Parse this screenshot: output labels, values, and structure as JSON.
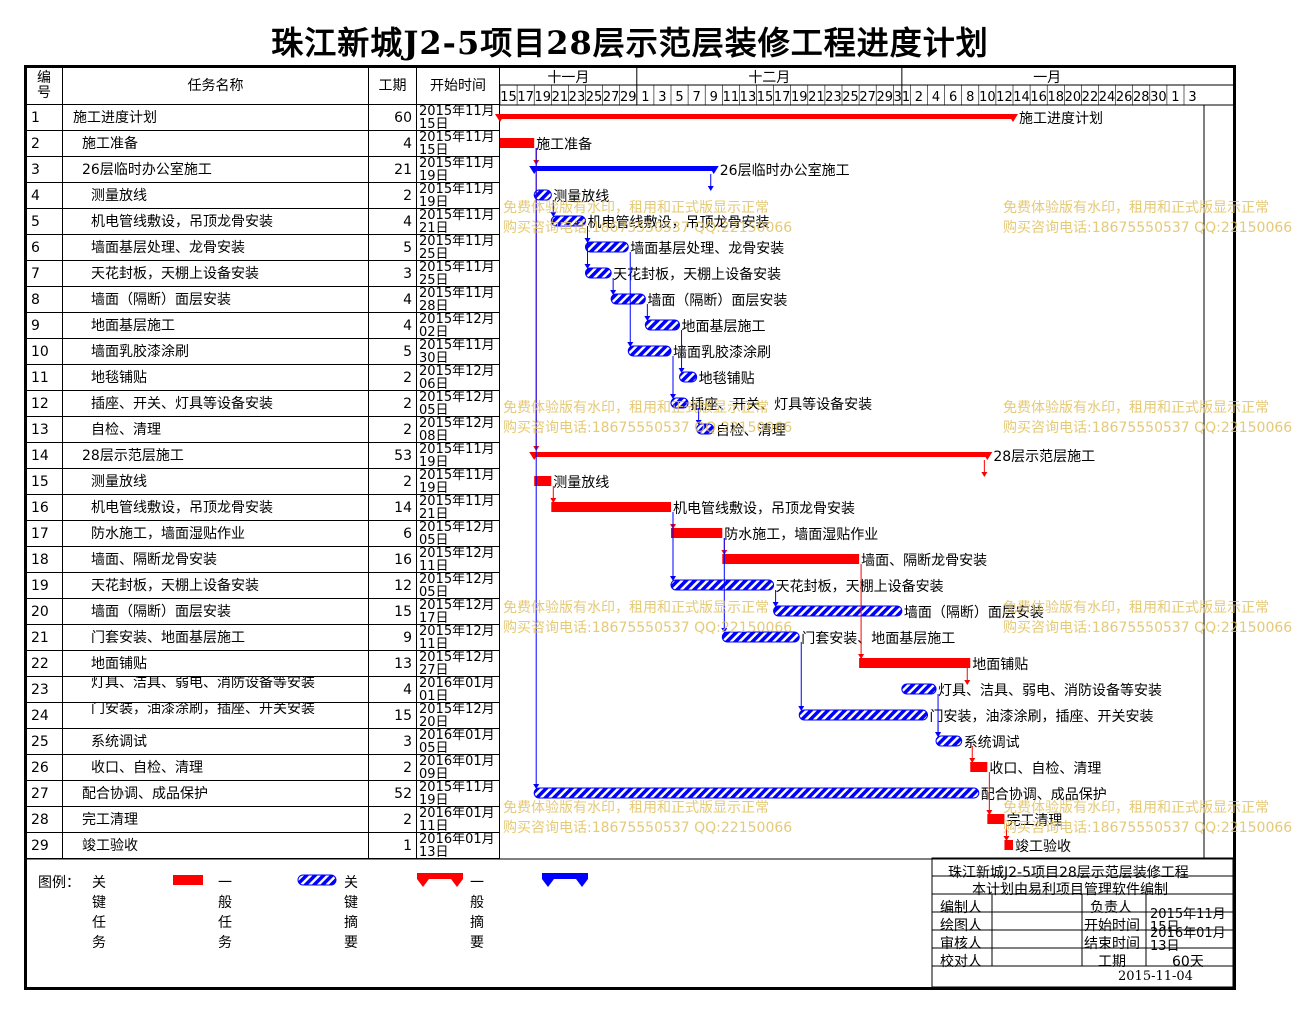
{
  "title": "珠江新城J2-5项目28层示范层装修工程进度计划",
  "headers": {
    "id": "编号",
    "name": "任务名称",
    "duration": "工期",
    "start": "开始时间"
  },
  "months": [
    "十一月",
    "十二月",
    "一月"
  ],
  "day_ticks": [
    "15",
    "17",
    "19",
    "21",
    "23",
    "25",
    "27",
    "29",
    "1",
    "3",
    "5",
    "7",
    "9",
    "11",
    "13",
    "15",
    "17",
    "19",
    "21",
    "23",
    "25",
    "27",
    "29",
    "31",
    "2",
    "4",
    "6",
    "8",
    "10",
    "12",
    "14",
    "16",
    "18",
    "20",
    "22",
    "24",
    "26",
    "28",
    "30",
    "1",
    "3"
  ],
  "chart_data": {
    "type": "gantt",
    "x_axis": {
      "start": "2015-11-15",
      "end": "2016-02-03"
    },
    "tasks": [
      {
        "id": "1",
        "name": "施工进度计划",
        "duration": "60",
        "start": "2015年11月15日",
        "start_iso": "2015-11-15",
        "days": 60,
        "kind": "key-summary",
        "indent": 0
      },
      {
        "id": "2",
        "name": "施工准备",
        "duration": "4",
        "start": "2015年11月15日",
        "start_iso": "2015-11-15",
        "days": 4,
        "kind": "key",
        "indent": 1
      },
      {
        "id": "3",
        "name": "26层临时办公室施工",
        "duration": "21",
        "start": "2015年11月19日",
        "start_iso": "2015-11-19",
        "days": 21,
        "kind": "summary",
        "indent": 1
      },
      {
        "id": "4",
        "name": "测量放线",
        "duration": "2",
        "start": "2015年11月19日",
        "start_iso": "2015-11-19",
        "days": 2,
        "kind": "normal",
        "indent": 2
      },
      {
        "id": "5",
        "name": "机电管线敷设，吊顶龙骨安装",
        "duration": "4",
        "start": "2015年11月21日",
        "start_iso": "2015-11-21",
        "days": 4,
        "kind": "normal",
        "indent": 2
      },
      {
        "id": "6",
        "name": "墙面基层处理、龙骨安装",
        "duration": "5",
        "start": "2015年11月25日",
        "start_iso": "2015-11-25",
        "days": 5,
        "kind": "normal",
        "indent": 2
      },
      {
        "id": "7",
        "name": "天花封板，天棚上设备安装",
        "duration": "3",
        "start": "2015年11月25日",
        "start_iso": "2015-11-25",
        "days": 3,
        "kind": "normal",
        "indent": 2
      },
      {
        "id": "8",
        "name": "墙面（隔断）面层安装",
        "duration": "4",
        "start": "2015年11月28日",
        "start_iso": "2015-11-28",
        "days": 4,
        "kind": "normal",
        "indent": 2
      },
      {
        "id": "9",
        "name": "地面基层施工",
        "duration": "4",
        "start": "2015年12月02日",
        "start_iso": "2015-12-02",
        "days": 4,
        "kind": "normal",
        "indent": 2
      },
      {
        "id": "10",
        "name": "墙面乳胶漆涂刷",
        "duration": "5",
        "start": "2015年11月30日",
        "start_iso": "2015-11-30",
        "days": 5,
        "kind": "normal",
        "indent": 2
      },
      {
        "id": "11",
        "name": "地毯铺贴",
        "duration": "2",
        "start": "2015年12月06日",
        "start_iso": "2015-12-06",
        "days": 2,
        "kind": "normal",
        "indent": 2
      },
      {
        "id": "12",
        "name": "插座、开关、灯具等设备安装",
        "duration": "2",
        "start": "2015年12月05日",
        "start_iso": "2015-12-05",
        "days": 2,
        "kind": "normal",
        "indent": 2
      },
      {
        "id": "13",
        "name": "自检、清理",
        "duration": "2",
        "start": "2015年12月08日",
        "start_iso": "2015-12-08",
        "days": 2,
        "kind": "normal",
        "indent": 2
      },
      {
        "id": "14",
        "name": "28层示范层施工",
        "duration": "53",
        "start": "2015年11月19日",
        "start_iso": "2015-11-19",
        "days": 53,
        "kind": "key-summary",
        "indent": 1
      },
      {
        "id": "15",
        "name": "测量放线",
        "duration": "2",
        "start": "2015年11月19日",
        "start_iso": "2015-11-19",
        "days": 2,
        "kind": "key",
        "indent": 2
      },
      {
        "id": "16",
        "name": "机电管线敷设，吊顶龙骨安装",
        "duration": "14",
        "start": "2015年11月21日",
        "start_iso": "2015-11-21",
        "days": 14,
        "kind": "key",
        "indent": 2
      },
      {
        "id": "17",
        "name": "防水施工，墙面湿贴作业",
        "duration": "6",
        "start": "2015年12月05日",
        "start_iso": "2015-12-05",
        "days": 6,
        "kind": "key",
        "indent": 2
      },
      {
        "id": "18",
        "name": "墙面、隔断龙骨安装",
        "duration": "16",
        "start": "2015年12月11日",
        "start_iso": "2015-12-11",
        "days": 16,
        "kind": "key",
        "indent": 2
      },
      {
        "id": "19",
        "name": "天花封板，天棚上设备安装",
        "duration": "12",
        "start": "2015年12月05日",
        "start_iso": "2015-12-05",
        "days": 12,
        "kind": "normal",
        "indent": 2
      },
      {
        "id": "20",
        "name": "墙面（隔断）面层安装",
        "duration": "15",
        "start": "2015年12月17日",
        "start_iso": "2015-12-17",
        "days": 15,
        "kind": "normal",
        "indent": 2
      },
      {
        "id": "21",
        "name": "门套安装、地面基层施工",
        "duration": "9",
        "start": "2015年12月11日",
        "start_iso": "2015-12-11",
        "days": 9,
        "kind": "normal",
        "indent": 2
      },
      {
        "id": "22",
        "name": "地面铺贴",
        "duration": "13",
        "start": "2015年12月27日",
        "start_iso": "2015-12-27",
        "days": 13,
        "kind": "key",
        "indent": 2
      },
      {
        "id": "23",
        "name": "灯具、洁具、弱电、消防设备等安装",
        "duration": "4",
        "start": "2016年01月01日",
        "start_iso": "2016-01-01",
        "days": 4,
        "kind": "normal",
        "indent": 2
      },
      {
        "id": "24",
        "name": "门安装，油漆涂刷，插座、开关安装",
        "duration": "15",
        "start": "2015年12月20日",
        "start_iso": "2015-12-20",
        "days": 15,
        "kind": "normal",
        "indent": 2
      },
      {
        "id": "25",
        "name": "系统调试",
        "duration": "3",
        "start": "2016年01月05日",
        "start_iso": "2016-01-05",
        "days": 3,
        "kind": "normal",
        "indent": 2
      },
      {
        "id": "26",
        "name": "收口、自检、清理",
        "duration": "2",
        "start": "2016年01月09日",
        "start_iso": "2016-01-09",
        "days": 2,
        "kind": "key",
        "indent": 2
      },
      {
        "id": "27",
        "name": "配合协调、成品保护",
        "duration": "52",
        "start": "2015年11月19日",
        "start_iso": "2015-11-19",
        "days": 52,
        "kind": "normal",
        "indent": 1
      },
      {
        "id": "28",
        "name": "完工清理",
        "duration": "2",
        "start": "2016年01月11日",
        "start_iso": "2016-01-11",
        "days": 2,
        "kind": "key",
        "indent": 1
      },
      {
        "id": "29",
        "name": "竣工验收",
        "duration": "1",
        "start": "2016年01月13日",
        "start_iso": "2016-01-13",
        "days": 1,
        "kind": "key",
        "indent": 1
      }
    ]
  },
  "legend": {
    "label": "图例：",
    "key_task": "关键任务",
    "normal_task": "一般任务",
    "key_summary": "关键摘要",
    "normal_summary": "一般摘要"
  },
  "info": {
    "project": "珠江新城J2-5项目28层示范层装修工程",
    "software": "本计划由易利项目管理软件编制",
    "editor": "编制人",
    "drawer": "绘图人",
    "reviewer": "审核人",
    "checker": "校对人",
    "owner": "负责人",
    "start_label": "开始时间",
    "end_label": "结束时间",
    "duration_label": "工期",
    "start_value": "2015年11月15日",
    "end_value": "2016年01月13日",
    "duration_value": "60天",
    "date": "2015-11-04"
  },
  "watermark": {
    "line1": "免费体验版有水印，租用和正式版显示正常",
    "line2": "购买咨询电话:18675550537 QQ:22150066"
  },
  "colors": {
    "key": "#ff0000",
    "normal": "#0000ff"
  }
}
